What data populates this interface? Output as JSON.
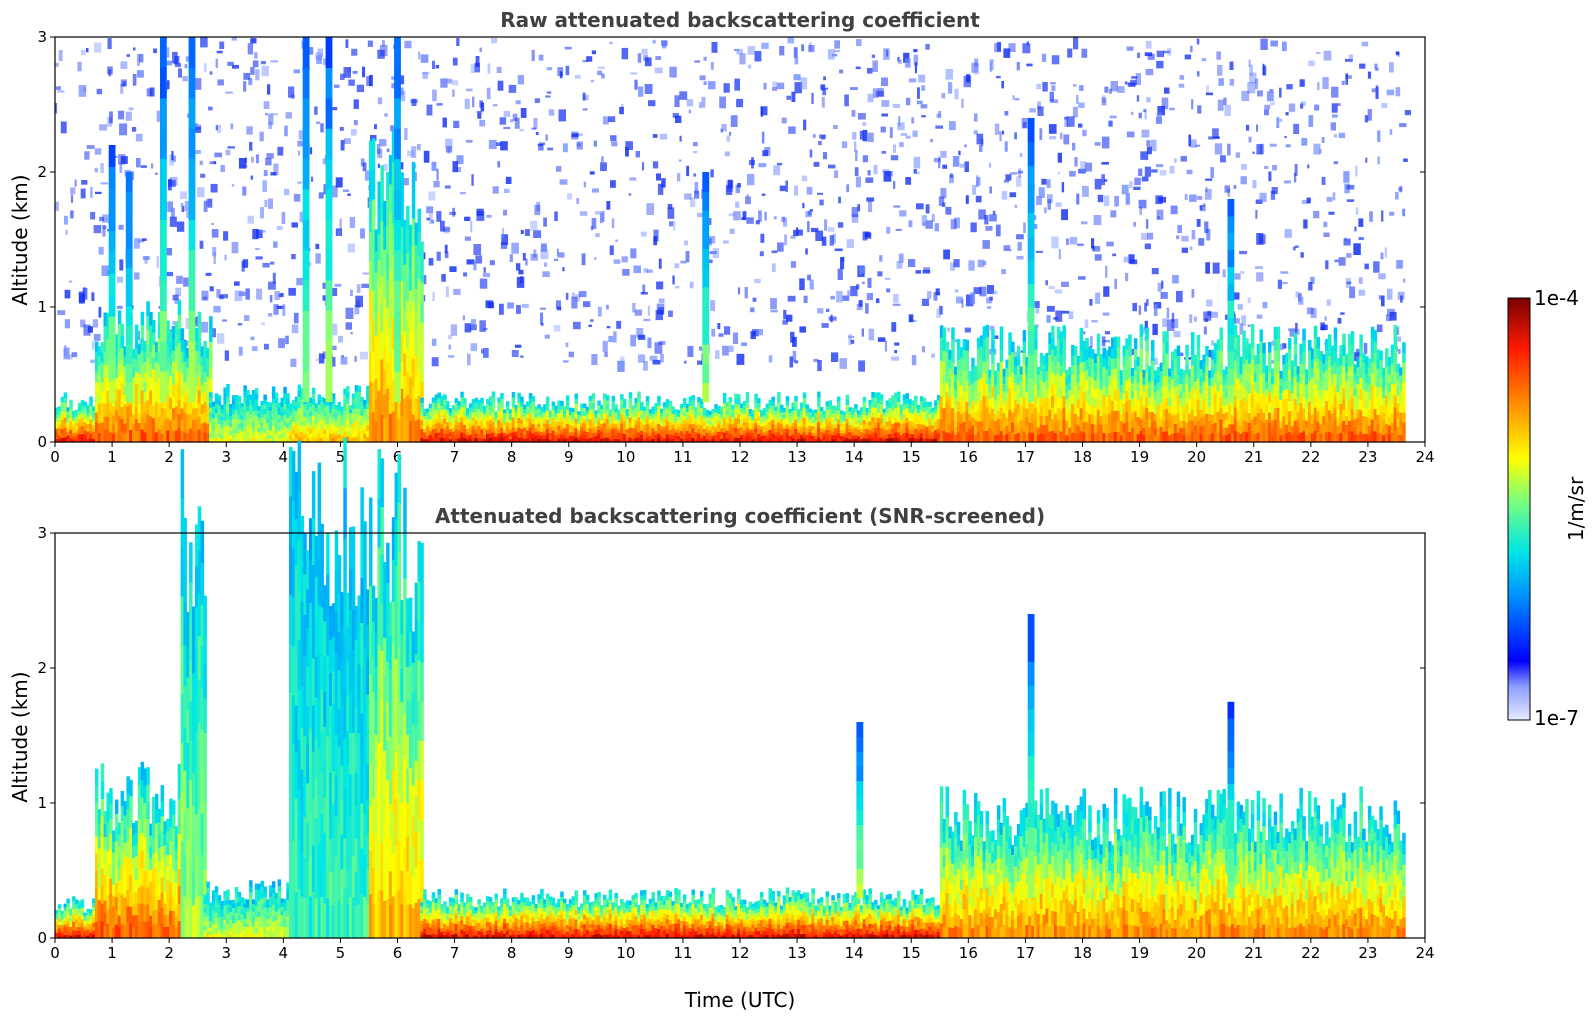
{
  "chart_data": [
    {
      "type": "heatmap",
      "title": "Raw attenuated backscattering coefficient",
      "xlabel": "",
      "ylabel": "Altitude (km)",
      "xlim": [
        0,
        24
      ],
      "ylim": [
        0,
        3
      ],
      "x_ticks": [
        0,
        1,
        2,
        3,
        4,
        5,
        6,
        7,
        8,
        9,
        10,
        11,
        12,
        13,
        14,
        15,
        16,
        17,
        18,
        19,
        20,
        21,
        22,
        23,
        24
      ],
      "y_ticks": [
        0,
        1,
        2,
        3
      ],
      "data_end_time": 23.65,
      "features": [
        {
          "time": [
            0.0,
            0.7
          ],
          "top_km": 0.3,
          "level": 0.9
        },
        {
          "time": [
            0.7,
            2.7
          ],
          "top_km": 0.85,
          "level": 0.8
        },
        {
          "time": [
            2.7,
            4.1
          ],
          "top_km": 0.35,
          "level": 0.6
        },
        {
          "time": [
            4.1,
            5.5
          ],
          "top_km": 0.35,
          "level": 0.7
        },
        {
          "time": [
            5.5,
            6.4
          ],
          "top_km": 1.9,
          "level": 0.75
        },
        {
          "time": [
            6.4,
            15.5
          ],
          "top_km": 0.3,
          "level": 0.9
        },
        {
          "time": [
            15.5,
            23.65
          ],
          "top_km": 0.7,
          "level": 0.8
        }
      ],
      "columns": [
        {
          "time": 1.0,
          "top_km": 2.2
        },
        {
          "time": 1.3,
          "top_km": 2.0
        },
        {
          "time": 1.9,
          "top_km": 3.0
        },
        {
          "time": 2.4,
          "top_km": 3.0
        },
        {
          "time": 4.4,
          "top_km": 3.0
        },
        {
          "time": 4.8,
          "top_km": 3.0
        },
        {
          "time": 6.0,
          "top_km": 3.0
        },
        {
          "time": 11.4,
          "top_km": 2.0
        },
        {
          "time": 17.1,
          "top_km": 2.4
        },
        {
          "time": 20.6,
          "top_km": 1.8
        }
      ],
      "colorbar": {
        "min_label": "1e-7",
        "max_label": "1e-4",
        "label": "1/m/sr",
        "scale": "log"
      }
    },
    {
      "type": "heatmap",
      "title": "Attenuated backscattering coefficient (SNR-screened)",
      "xlabel": "Time (UTC)",
      "ylabel": "Altitude (km)",
      "xlim": [
        0,
        24
      ],
      "ylim": [
        0,
        3
      ],
      "x_ticks": [
        0,
        1,
        2,
        3,
        4,
        5,
        6,
        7,
        8,
        9,
        10,
        11,
        12,
        13,
        14,
        15,
        16,
        17,
        18,
        19,
        20,
        21,
        22,
        23,
        24
      ],
      "y_ticks": [
        0,
        1,
        2,
        3
      ],
      "data_end_time": 23.65,
      "features": [
        {
          "time": [
            0.0,
            0.7
          ],
          "top_km": 0.25,
          "level": 0.9
        },
        {
          "time": [
            0.7,
            2.2
          ],
          "top_km": 1.05,
          "level": 0.8
        },
        {
          "time": [
            2.2,
            2.6
          ],
          "top_km": 3.0,
          "level": 0.55
        },
        {
          "time": [
            2.6,
            4.1
          ],
          "top_km": 0.35,
          "level": 0.6
        },
        {
          "time": [
            4.1,
            5.5
          ],
          "top_km": 3.0,
          "level": 0.45
        },
        {
          "time": [
            5.5,
            6.4
          ],
          "top_km": 2.9,
          "level": 0.7
        },
        {
          "time": [
            6.4,
            15.5
          ],
          "top_km": 0.3,
          "level": 0.9
        },
        {
          "time": [
            15.5,
            23.65
          ],
          "top_km": 0.9,
          "level": 0.75
        }
      ],
      "columns": [
        {
          "time": 14.1,
          "top_km": 1.6
        },
        {
          "time": 17.1,
          "top_km": 2.4
        },
        {
          "time": 20.6,
          "top_km": 1.75
        }
      ],
      "colorbar": {
        "min_label": "1e-7",
        "max_label": "1e-4",
        "label": "1/m/sr",
        "scale": "log"
      }
    }
  ],
  "colors": {
    "low": "#0000ff",
    "mid_low": "#00c8ff",
    "mid": "#ffff00",
    "mid_high": "#ff6a00",
    "high": "#8b0000",
    "title": "#404040"
  }
}
